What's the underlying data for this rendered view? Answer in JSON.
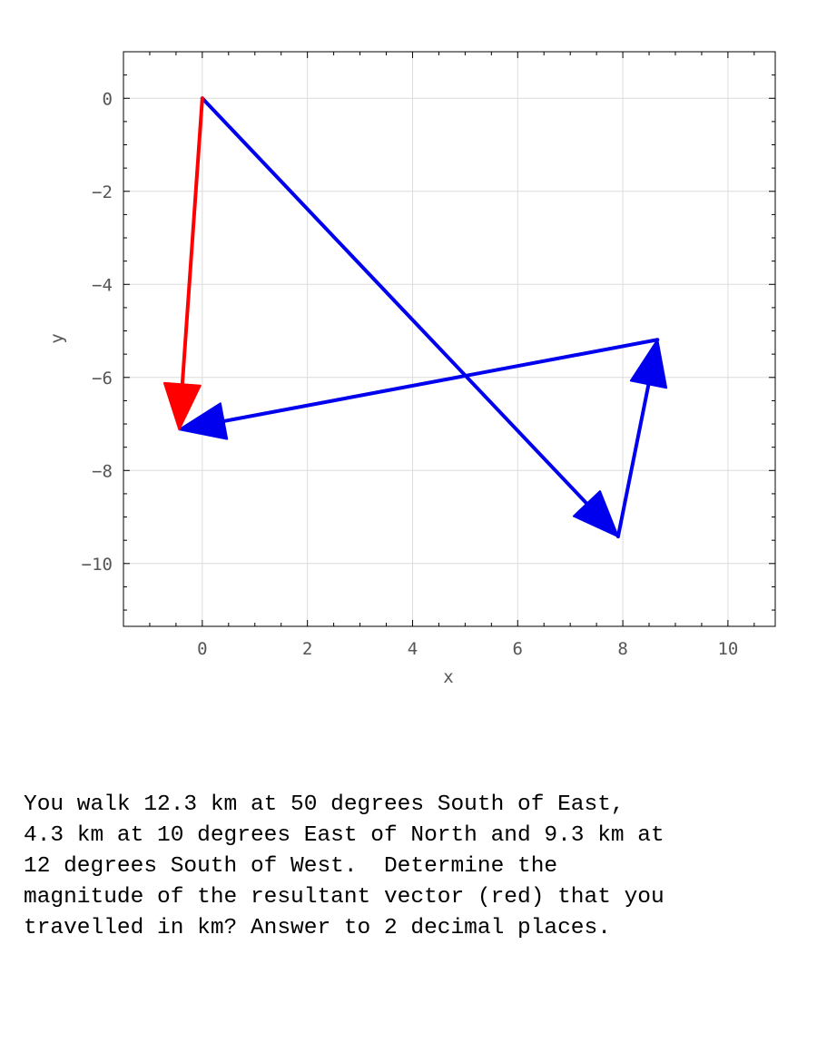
{
  "chart_data": {
    "type": "vector-diagram",
    "xlabel": "x",
    "ylabel": "y",
    "xlim": [
      -1.5,
      10.9
    ],
    "ylim": [
      -11.35,
      1.0
    ],
    "xticks": [
      0,
      2,
      4,
      6,
      8,
      10
    ],
    "yticks": [
      0,
      -2,
      -4,
      -6,
      -8,
      -10
    ],
    "grid": true,
    "vectors": [
      {
        "from": [
          0,
          0
        ],
        "to": [
          7.91,
          -9.42
        ],
        "color": "#0000ee"
      },
      {
        "from": [
          7.91,
          -9.42
        ],
        "to": [
          8.66,
          -5.19
        ],
        "color": "#0000ee"
      },
      {
        "from": [
          8.66,
          -5.19
        ],
        "to": [
          -0.44,
          -7.12
        ],
        "color": "#0000ee"
      },
      {
        "from": [
          0,
          0
        ],
        "to": [
          -0.44,
          -7.12
        ],
        "color": "#ff0000"
      }
    ]
  },
  "question": {
    "lines": [
      "You walk 12.3 km at 50 degrees South of East,",
      "4.3 km at 10 degrees East of North and 9.3 km at",
      "12 degrees South of West.  Determine the",
      "magnitude of the resultant vector (red) that you",
      "travelled in km? Answer to 2 decimal places."
    ]
  }
}
